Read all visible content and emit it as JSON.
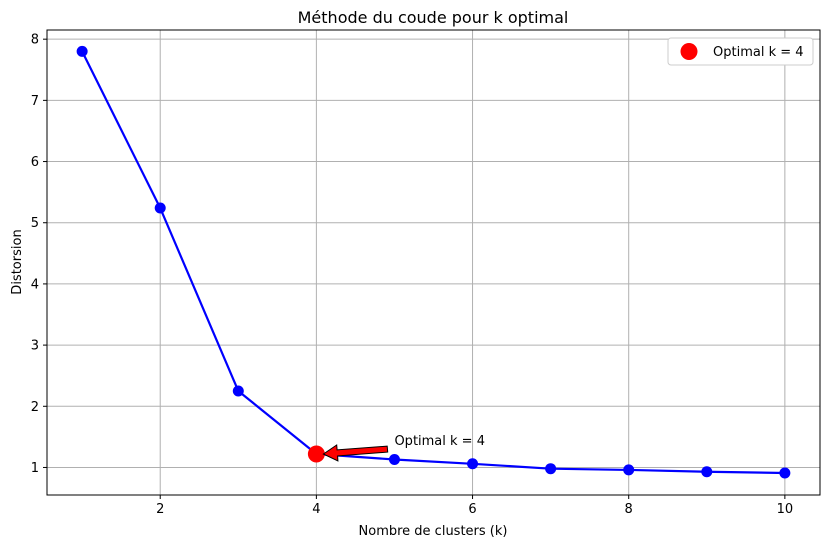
{
  "chart_data": {
    "type": "line",
    "title": "Méthode du coude pour k optimal",
    "xlabel": "Nombre de clusters (k)",
    "ylabel": "Distorsion",
    "xlim": [
      0.55,
      10.45
    ],
    "ylim": [
      0.55,
      8.15
    ],
    "xticks": [
      2,
      4,
      6,
      8,
      10
    ],
    "yticks": [
      1,
      2,
      3,
      4,
      5,
      6,
      7,
      8
    ],
    "grid": true,
    "legend_position": "top-right",
    "series": [
      {
        "color": "#0000ff",
        "marker": "circle",
        "x": [
          1,
          2,
          3,
          4,
          5,
          6,
          7,
          8,
          9,
          10
        ],
        "y": [
          7.8,
          5.24,
          2.25,
          1.22,
          1.13,
          1.06,
          0.98,
          0.96,
          0.93,
          0.91
        ]
      }
    ],
    "highlight": {
      "name": "Optimal k = 4",
      "x": 4,
      "y": 1.22,
      "color": "#ff0000"
    },
    "annotation": {
      "text": "Optimal k = 4",
      "x": 5,
      "y": 1.3,
      "arrow_to": [
        4,
        1.22
      ],
      "arrow_color": "#ff0000"
    }
  }
}
